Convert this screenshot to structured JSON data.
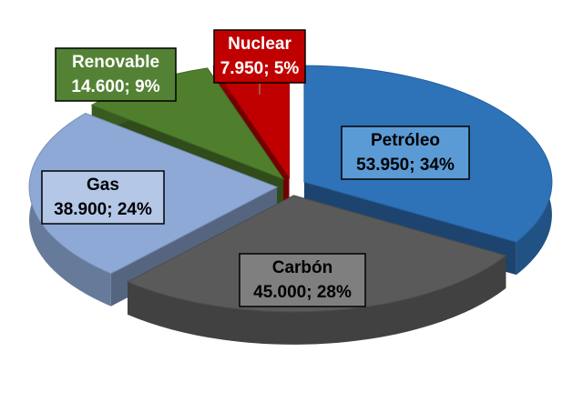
{
  "chart_data": {
    "type": "pie3d",
    "categories": [
      "Petróleo",
      "Carbón",
      "Gas",
      "Renovable",
      "Nuclear"
    ],
    "values": [
      53950,
      45000,
      38900,
      14600,
      7950
    ],
    "value_labels": [
      "53.950; 34%",
      "45.000; 28%",
      "38.900; 24%",
      "14.600; 9%",
      "7.950; 5%"
    ],
    "colors": [
      "#2e72b8",
      "#5a5a5a",
      "#8ea9d6",
      "#4f7f2c",
      "#c00000"
    ]
  }
}
